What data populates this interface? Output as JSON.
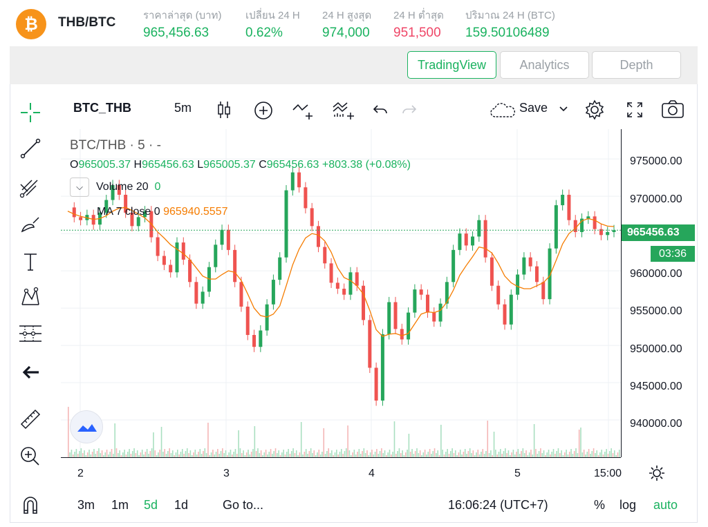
{
  "ticker": {
    "coin_symbol": "₿",
    "pair": "THB/BTC",
    "stats": [
      {
        "label": "ราคาล่าสุด (บาท)",
        "value": "965,456.63",
        "color": "green"
      },
      {
        "label": "เปลี่ยน 24 H",
        "value": "0.62%",
        "color": "green"
      },
      {
        "label": "24 H สูงสุด",
        "value": "974,000",
        "color": "green"
      },
      {
        "label": "24 H ต่ำสุด",
        "value": "951,500",
        "color": "red"
      },
      {
        "label": "ปริมาณ 24 H (BTC)",
        "value": "159.50106489",
        "color": "green"
      }
    ]
  },
  "tabs": [
    {
      "label": "TradingView",
      "active": true
    },
    {
      "label": "Analytics",
      "active": false
    },
    {
      "label": "Depth",
      "active": false
    }
  ],
  "toolbar": {
    "symbol": "BTC_THB",
    "interval": "5m",
    "save_label": "Save"
  },
  "legend": {
    "title": "BTC/THB · 5 · -",
    "ohlc": {
      "o_label": "O",
      "o": "965005.37",
      "h_label": "H",
      "h": "965456.63",
      "l_label": "L",
      "l": "965005.37",
      "c_label": "C",
      "c": "965456.63",
      "change": "+803.38 (+0.08%)"
    },
    "volume_label": "Volume 20",
    "volume_value": "0",
    "ma_label": "MA 7 close 0",
    "ma_value": "965940.5557"
  },
  "price_axis": {
    "labels": [
      "975000.00",
      "970000.00",
      "965456.63",
      "960000.00",
      "955000.00",
      "950000.00",
      "945000.00",
      "940000.00"
    ],
    "current_price": "965456.63",
    "countdown": "03:36"
  },
  "time_axis": {
    "labels": [
      "2",
      "3",
      "4",
      "5",
      "15:00"
    ]
  },
  "bottom_bar": {
    "ranges": [
      {
        "label": "3m",
        "active": false
      },
      {
        "label": "1m",
        "active": false
      },
      {
        "label": "5d",
        "active": true
      },
      {
        "label": "1d",
        "active": false
      }
    ],
    "goto_label": "Go to...",
    "clock": "16:06:24 (UTC+7)",
    "percent_label": "%",
    "log_label": "log",
    "auto_label": "auto"
  },
  "colors": {
    "up": "#26a65b",
    "down": "#ef5350",
    "accent": "#1ab25f",
    "ma": "#f57c00"
  },
  "chart_data": {
    "type": "line",
    "series": [
      {
        "name": "BTC/THB",
        "values": [
          968500,
          967200,
          966800,
          967500,
          966200,
          967800,
          969500,
          971500,
          970200,
          967800,
          966000,
          967200,
          968000,
          964500,
          962000,
          960800,
          959800,
          963800,
          961500,
          958500,
          955600,
          957200,
          960500,
          963500,
          965500,
          962800,
          958500,
          955200,
          951400,
          949800,
          952000,
          955500,
          958800,
          961800,
          970800,
          973200,
          971200,
          968400,
          966000,
          963200,
          961000,
          958400,
          957600,
          956800,
          959800,
          958000,
          953400,
          947000,
          942600,
          951500,
          955800,
          952200,
          950800,
          954400,
          957500,
          956800,
          954400,
          953200,
          955600,
          958500,
          962800,
          965000,
          963400,
          964600,
          966800,
          961800,
          958000,
          955500,
          952800,
          956800,
          959500,
          961800,
          960600,
          958500,
          956200,
          963000,
          968800,
          970200,
          966800,
          965200,
          967000,
          967300,
          965600,
          964800,
          965200,
          965456
        ]
      },
      {
        "name": "MA 7 close 0",
        "values": [
          968000,
          967600,
          967300,
          967100,
          966900,
          967000,
          967400,
          968000,
          968400,
          968500,
          968100,
          967600,
          967100,
          966300,
          965200,
          964400,
          963500,
          962900,
          962300,
          961500,
          960400,
          959300,
          958900,
          958900,
          959500,
          960000,
          959800,
          958700,
          956900,
          955000,
          954000,
          953800,
          954200,
          955300,
          958000,
          960800,
          962900,
          964400,
          965000,
          964800,
          964000,
          962500,
          960400,
          959100,
          958700,
          958000,
          956900,
          954700,
          952100,
          951200,
          951500,
          951600,
          951300,
          951600,
          952900,
          954200,
          954500,
          954400,
          954700,
          955800,
          957400,
          959400,
          960700,
          961900,
          963200,
          963000,
          962400,
          961000,
          959300,
          958400,
          957900,
          957600,
          957600,
          958000,
          958400,
          959300,
          961400,
          963600,
          965000,
          965700,
          966700,
          967000,
          966800,
          966300,
          966000,
          965940
        ]
      }
    ],
    "ylim": [
      935000,
      979000
    ],
    "y_ticks": [
      940000,
      945000,
      950000,
      955000,
      960000,
      965000,
      970000,
      975000
    ],
    "x_tick_labels": [
      "2",
      "3",
      "4",
      "5",
      "15:00"
    ],
    "current_price": 965456.63,
    "grid": true
  }
}
